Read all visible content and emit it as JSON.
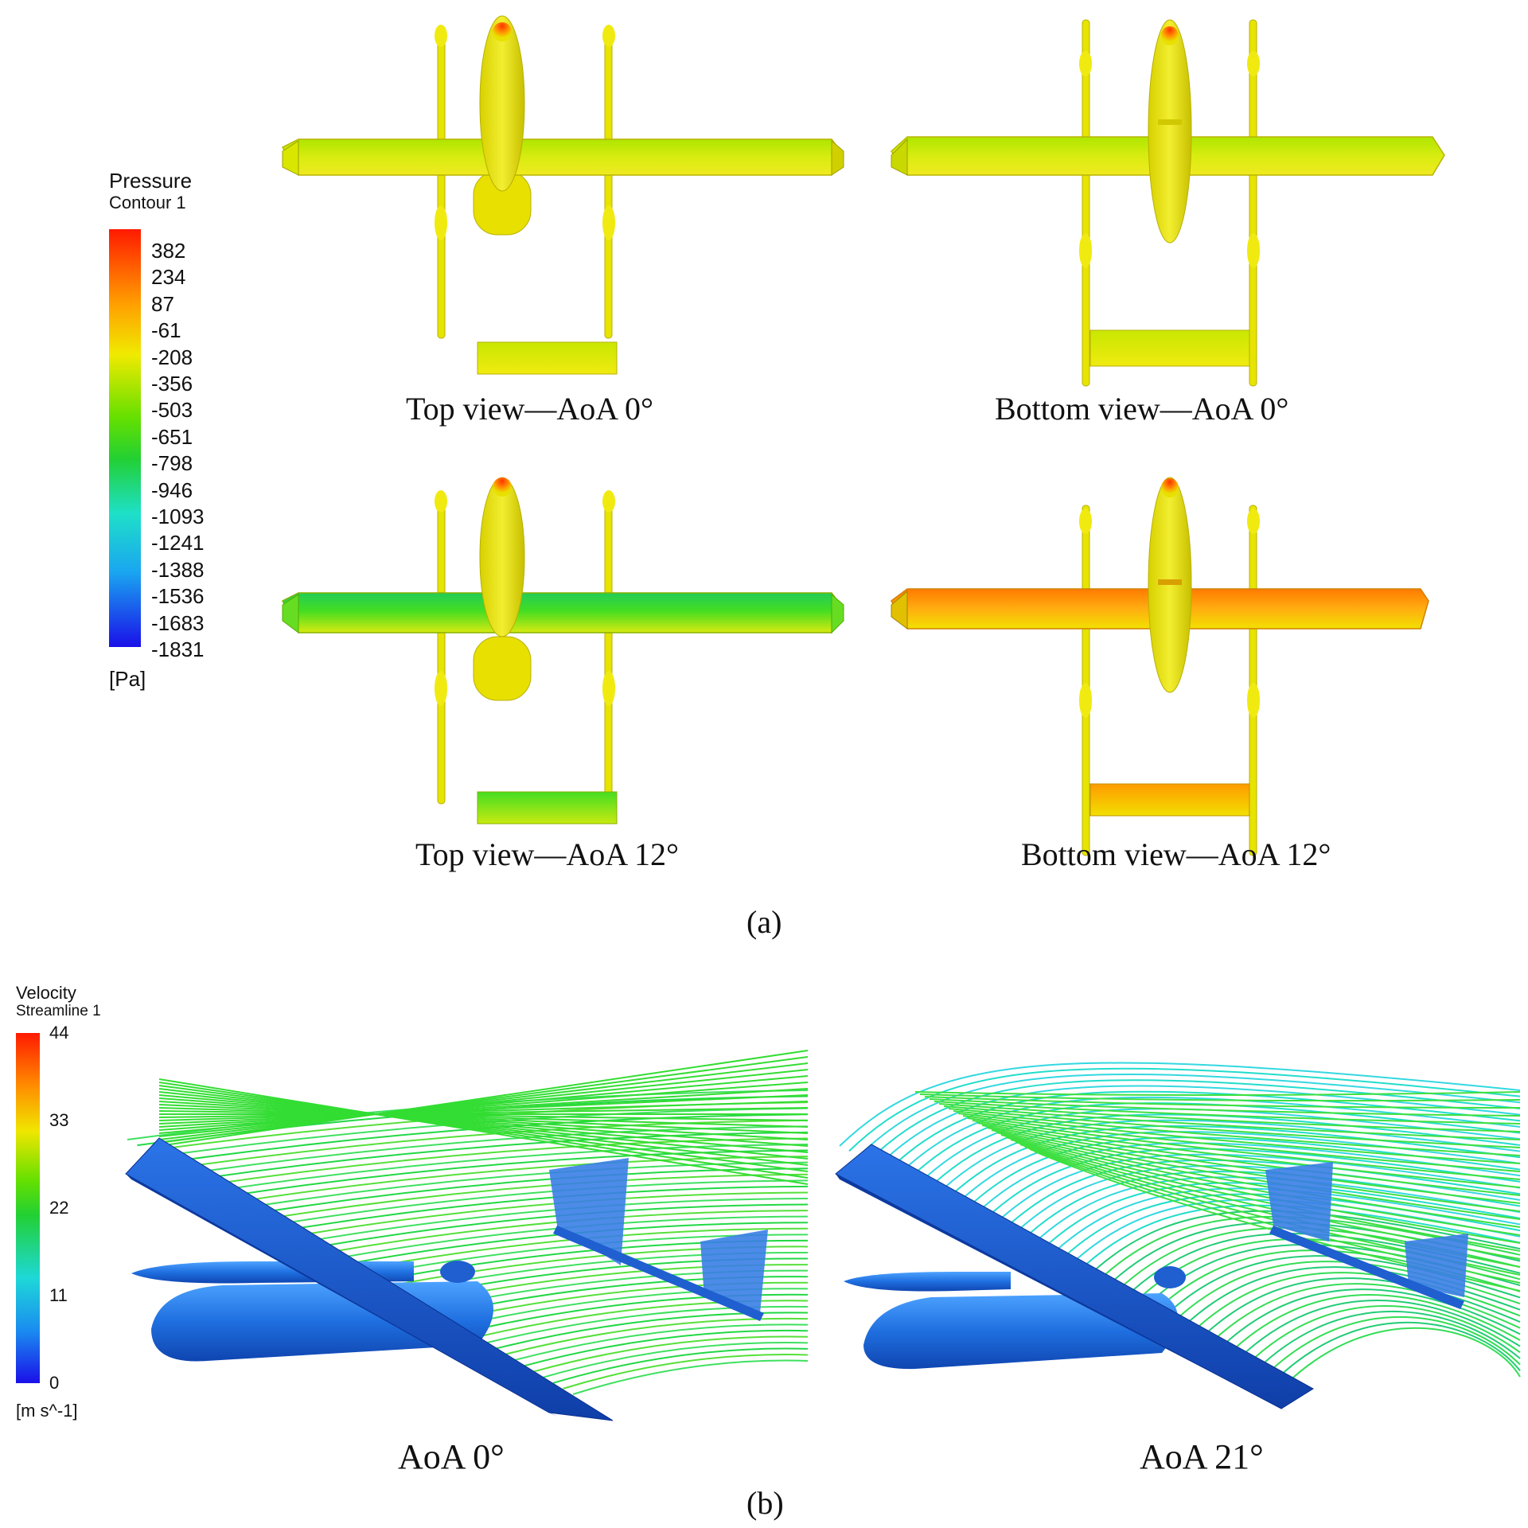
{
  "legend_a": {
    "title": "Pressure",
    "subtitle": "Contour 1",
    "unit": "[Pa]",
    "ticks": [
      "382",
      "234",
      "87",
      "-61",
      "-208",
      "-356",
      "-503",
      "-651",
      "-798",
      "-946",
      "-1093",
      "-1241",
      "-1388",
      "-1536",
      "-1683",
      "-1831"
    ]
  },
  "legend_b": {
    "title": "Velocity",
    "subtitle": "Streamline 1",
    "unit": "[m s^-1]",
    "ticks": [
      "44",
      "33",
      "22",
      "11",
      "0"
    ]
  },
  "captions": {
    "top_0": "Top view—AoA 0°",
    "bottom_0": "Bottom view—AoA 0°",
    "top_12": "Top view—AoA 12°",
    "bottom_12": "Bottom view—AoA 12°",
    "aoa_0": "AoA 0°",
    "aoa_21": "AoA 21°"
  },
  "panels": {
    "a": "(a)",
    "b": "(b)"
  },
  "colors": {
    "red": "#ff2a00",
    "orange": "#ff9900",
    "yellow": "#f2e600",
    "green": "#33dd11",
    "cyan": "#22dddd",
    "blue": "#1a4fd8",
    "body_blue": "#2f7fe6"
  }
}
